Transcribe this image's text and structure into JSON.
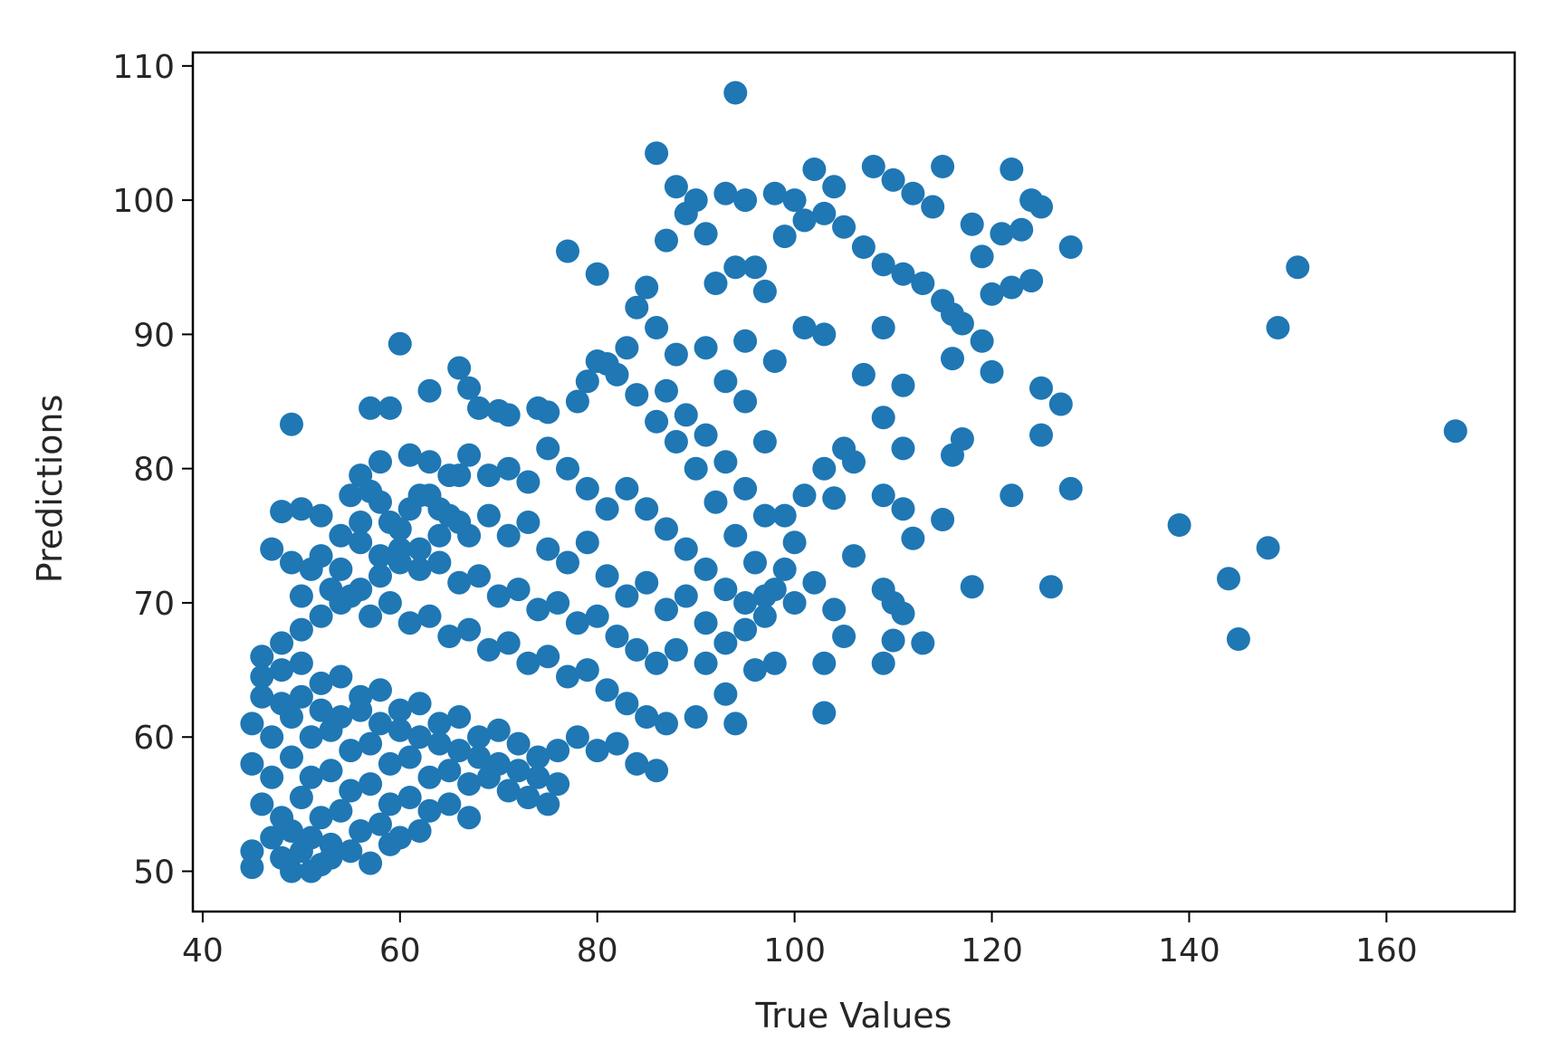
{
  "chart_data": {
    "type": "scatter",
    "title": "",
    "xlabel": "True Values",
    "ylabel": "Predictions",
    "xlim": [
      39,
      173
    ],
    "ylim": [
      47,
      111
    ],
    "xticks": [
      40,
      60,
      80,
      100,
      120,
      140,
      160
    ],
    "yticks": [
      50,
      60,
      70,
      80,
      90,
      100,
      110
    ],
    "grid": false,
    "legend": "none",
    "marker_color": "#1f77b4",
    "series": [
      {
        "points": [
          [
            94,
            108
          ],
          [
            86,
            103.5
          ],
          [
            88,
            101
          ],
          [
            90,
            100
          ],
          [
            93,
            100.5
          ],
          [
            95,
            100
          ],
          [
            98,
            100.5
          ],
          [
            100,
            100
          ],
          [
            102,
            102.3
          ],
          [
            104,
            101
          ],
          [
            108,
            102.5
          ],
          [
            110,
            101.5
          ],
          [
            115,
            102.5
          ],
          [
            122,
            102.3
          ],
          [
            124,
            100
          ],
          [
            125,
            99.5
          ],
          [
            112,
            100.5
          ],
          [
            114,
            99.5
          ],
          [
            118,
            98.2
          ],
          [
            121,
            97.5
          ],
          [
            123,
            97.8
          ],
          [
            128,
            96.5
          ],
          [
            120,
            93
          ],
          [
            119,
            95.8
          ],
          [
            115,
            92.5
          ],
          [
            116,
            91.5
          ],
          [
            117,
            90.8
          ],
          [
            122,
            93.5
          ],
          [
            124,
            94
          ],
          [
            116,
            88.2
          ],
          [
            119,
            89.5
          ],
          [
            120,
            87.2
          ],
          [
            111,
            86.2
          ],
          [
            107,
            87
          ],
          [
            109,
            90.5
          ],
          [
            103,
            90
          ],
          [
            101,
            90.5
          ],
          [
            95,
            89.5
          ],
          [
            98,
            88
          ],
          [
            96,
            95
          ],
          [
            99,
            97.3
          ],
          [
            101,
            98.5
          ],
          [
            103,
            99
          ],
          [
            105,
            98
          ],
          [
            107,
            96.5
          ],
          [
            109,
            95.2
          ],
          [
            111,
            94.5
          ],
          [
            113,
            93.8
          ],
          [
            97,
            93.2
          ],
          [
            94,
            95
          ],
          [
            91,
            97.5
          ],
          [
            89,
            99
          ],
          [
            87,
            97
          ],
          [
            92,
            93.8
          ],
          [
            85,
            93.5
          ],
          [
            84,
            92
          ],
          [
            86,
            90.5
          ],
          [
            88,
            88.5
          ],
          [
            91,
            89
          ],
          [
            93,
            86.5
          ],
          [
            95,
            85
          ],
          [
            97,
            82
          ],
          [
            83,
            89
          ],
          [
            81,
            87.8
          ],
          [
            77,
            96.2
          ],
          [
            80,
            94.5
          ],
          [
            87,
            85.8
          ],
          [
            89,
            84
          ],
          [
            91,
            82.5
          ],
          [
            93,
            80.5
          ],
          [
            95,
            78.5
          ],
          [
            97,
            76.5
          ],
          [
            99,
            76.5
          ],
          [
            101,
            78
          ],
          [
            103,
            80
          ],
          [
            105,
            81.5
          ],
          [
            106,
            80.5
          ],
          [
            104,
            77.8
          ],
          [
            100,
            74.5
          ],
          [
            102,
            71.5
          ],
          [
            104,
            69.5
          ],
          [
            105,
            67.5
          ],
          [
            103,
            65.5
          ],
          [
            98,
            65.5
          ],
          [
            96,
            65
          ],
          [
            94,
            61
          ],
          [
            90,
            61.5
          ],
          [
            91,
            65.5
          ],
          [
            93,
            63.2
          ],
          [
            95,
            68
          ],
          [
            97,
            70.5
          ],
          [
            99,
            72.5
          ],
          [
            109,
            83.8
          ],
          [
            109,
            78
          ],
          [
            111,
            81.5
          ],
          [
            116,
            81
          ],
          [
            117,
            82.2
          ],
          [
            111,
            77
          ],
          [
            115,
            76.2
          ],
          [
            112,
            74.8
          ],
          [
            109,
            71
          ],
          [
            110,
            70
          ],
          [
            111,
            69.2
          ],
          [
            106,
            73.5
          ],
          [
            113,
            67
          ],
          [
            110,
            67.2
          ],
          [
            109,
            65.5
          ],
          [
            103,
            61.8
          ],
          [
            118,
            71.2
          ],
          [
            122,
            78
          ],
          [
            125,
            82.5
          ],
          [
            125,
            86
          ],
          [
            127,
            84.8
          ],
          [
            128,
            78.5
          ],
          [
            126,
            71.2
          ],
          [
            139,
            75.8
          ],
          [
            144,
            71.8
          ],
          [
            148,
            74.1
          ],
          [
            145,
            67.3
          ],
          [
            149,
            90.5
          ],
          [
            151,
            95
          ],
          [
            167,
            82.8
          ],
          [
            60,
            89.3
          ],
          [
            49,
            83.3
          ],
          [
            57,
            84.5
          ],
          [
            59,
            84.5
          ],
          [
            63,
            85.8
          ],
          [
            66,
            87.5
          ],
          [
            67,
            86
          ],
          [
            68,
            84.5
          ],
          [
            70,
            84.3
          ],
          [
            71,
            84
          ],
          [
            74,
            84.5
          ],
          [
            75,
            84.2
          ],
          [
            78,
            85
          ],
          [
            79,
            86.5
          ],
          [
            80,
            88
          ],
          [
            82,
            87
          ],
          [
            84,
            85.5
          ],
          [
            86,
            83.5
          ],
          [
            88,
            82
          ],
          [
            90,
            80
          ],
          [
            92,
            77.5
          ],
          [
            94,
            75
          ],
          [
            96,
            73
          ],
          [
            98,
            71
          ],
          [
            100,
            70
          ],
          [
            56,
            79.5
          ],
          [
            58,
            80.5
          ],
          [
            61,
            81
          ],
          [
            63,
            80.5
          ],
          [
            65,
            79.5
          ],
          [
            67,
            81
          ],
          [
            69,
            79.5
          ],
          [
            71,
            80
          ],
          [
            73,
            79
          ],
          [
            75,
            81.5
          ],
          [
            77,
            80
          ],
          [
            79,
            78.5
          ],
          [
            81,
            77
          ],
          [
            83,
            78.5
          ],
          [
            85,
            77
          ],
          [
            87,
            75.5
          ],
          [
            89,
            74
          ],
          [
            91,
            72.5
          ],
          [
            93,
            71
          ],
          [
            95,
            70
          ],
          [
            97,
            69
          ],
          [
            55,
            78
          ],
          [
            57,
            78.3
          ],
          [
            59,
            76
          ],
          [
            61,
            77
          ],
          [
            63,
            78
          ],
          [
            65,
            76.5
          ],
          [
            67,
            75
          ],
          [
            69,
            76.5
          ],
          [
            71,
            75
          ],
          [
            73,
            76
          ],
          [
            75,
            74
          ],
          [
            77,
            73
          ],
          [
            79,
            74.5
          ],
          [
            81,
            72
          ],
          [
            83,
            70.5
          ],
          [
            85,
            71.5
          ],
          [
            87,
            69.5
          ],
          [
            89,
            70.5
          ],
          [
            91,
            68.5
          ],
          [
            93,
            67
          ],
          [
            48,
            76.8
          ],
          [
            50,
            77
          ],
          [
            52,
            76.5
          ],
          [
            54,
            75
          ],
          [
            56,
            74.5
          ],
          [
            58,
            73.5
          ],
          [
            60,
            74
          ],
          [
            62,
            72.5
          ],
          [
            64,
            73
          ],
          [
            66,
            71.5
          ],
          [
            68,
            72
          ],
          [
            70,
            70.5
          ],
          [
            72,
            71
          ],
          [
            74,
            69.5
          ],
          [
            76,
            70
          ],
          [
            78,
            68.5
          ],
          [
            80,
            69
          ],
          [
            82,
            67.5
          ],
          [
            84,
            66.5
          ],
          [
            86,
            65.5
          ],
          [
            88,
            66.5
          ],
          [
            47,
            74
          ],
          [
            49,
            73
          ],
          [
            51,
            72.5
          ],
          [
            53,
            71
          ],
          [
            55,
            70.5
          ],
          [
            57,
            69
          ],
          [
            59,
            70
          ],
          [
            61,
            68.5
          ],
          [
            63,
            69
          ],
          [
            65,
            67.5
          ],
          [
            67,
            68
          ],
          [
            69,
            66.5
          ],
          [
            71,
            67
          ],
          [
            73,
            65.5
          ],
          [
            75,
            66
          ],
          [
            77,
            64.5
          ],
          [
            79,
            65
          ],
          [
            81,
            63.5
          ],
          [
            83,
            62.5
          ],
          [
            85,
            61.5
          ],
          [
            87,
            61
          ],
          [
            46,
            66
          ],
          [
            48,
            65
          ],
          [
            50,
            65.5
          ],
          [
            52,
            64
          ],
          [
            54,
            64.5
          ],
          [
            56,
            63
          ],
          [
            58,
            63.5
          ],
          [
            60,
            62
          ],
          [
            62,
            62.5
          ],
          [
            64,
            61
          ],
          [
            66,
            61.5
          ],
          [
            68,
            60
          ],
          [
            70,
            60.5
          ],
          [
            72,
            59.5
          ],
          [
            74,
            58.5
          ],
          [
            76,
            59
          ],
          [
            78,
            60
          ],
          [
            80,
            59
          ],
          [
            82,
            59.5
          ],
          [
            84,
            58
          ],
          [
            86,
            57.5
          ],
          [
            45,
            61
          ],
          [
            47,
            60
          ],
          [
            49,
            61.5
          ],
          [
            51,
            60
          ],
          [
            53,
            60.5
          ],
          [
            55,
            59
          ],
          [
            57,
            59.5
          ],
          [
            59,
            58
          ],
          [
            61,
            58.5
          ],
          [
            63,
            57
          ],
          [
            65,
            57.5
          ],
          [
            67,
            56.5
          ],
          [
            69,
            57
          ],
          [
            71,
            56
          ],
          [
            73,
            55.5
          ],
          [
            75,
            55
          ],
          [
            45,
            58
          ],
          [
            47,
            57
          ],
          [
            49,
            58.5
          ],
          [
            51,
            57
          ],
          [
            53,
            57.5
          ],
          [
            55,
            56
          ],
          [
            57,
            56.5
          ],
          [
            59,
            55
          ],
          [
            61,
            55.5
          ],
          [
            63,
            54.5
          ],
          [
            65,
            55
          ],
          [
            67,
            54
          ],
          [
            46,
            55
          ],
          [
            48,
            54
          ],
          [
            50,
            55.5
          ],
          [
            52,
            54
          ],
          [
            54,
            54.5
          ],
          [
            56,
            53
          ],
          [
            58,
            53.5
          ],
          [
            60,
            52.5
          ],
          [
            62,
            53
          ],
          [
            45,
            51.5
          ],
          [
            45,
            50.3
          ],
          [
            48,
            51
          ],
          [
            49,
            50
          ],
          [
            50,
            51.5
          ],
          [
            51,
            50
          ],
          [
            52,
            50.5
          ],
          [
            53,
            51
          ],
          [
            57,
            50.6
          ],
          [
            59,
            52
          ],
          [
            47,
            52.5
          ],
          [
            49,
            53
          ],
          [
            51,
            52.5
          ],
          [
            53,
            52
          ],
          [
            55,
            51.5
          ],
          [
            46,
            63
          ],
          [
            48,
            62.5
          ],
          [
            50,
            63
          ],
          [
            52,
            62
          ],
          [
            54,
            61.5
          ],
          [
            56,
            62
          ],
          [
            58,
            61
          ],
          [
            60,
            60.5
          ],
          [
            62,
            60
          ],
          [
            64,
            59.5
          ],
          [
            66,
            59
          ],
          [
            68,
            58.5
          ],
          [
            70,
            58
          ],
          [
            72,
            57.5
          ],
          [
            74,
            57
          ],
          [
            76,
            56.5
          ],
          [
            46,
            64.5
          ],
          [
            48,
            67
          ],
          [
            50,
            68
          ],
          [
            52,
            69
          ],
          [
            54,
            70
          ],
          [
            56,
            71
          ],
          [
            58,
            72
          ],
          [
            60,
            73
          ],
          [
            62,
            74
          ],
          [
            64,
            75
          ],
          [
            66,
            76
          ],
          [
            50,
            70.5
          ],
          [
            52,
            73.5
          ],
          [
            54,
            72.5
          ],
          [
            56,
            76
          ],
          [
            58,
            77.5
          ],
          [
            60,
            75.5
          ],
          [
            62,
            78
          ],
          [
            64,
            77
          ],
          [
            66,
            79.5
          ]
        ]
      }
    ]
  }
}
